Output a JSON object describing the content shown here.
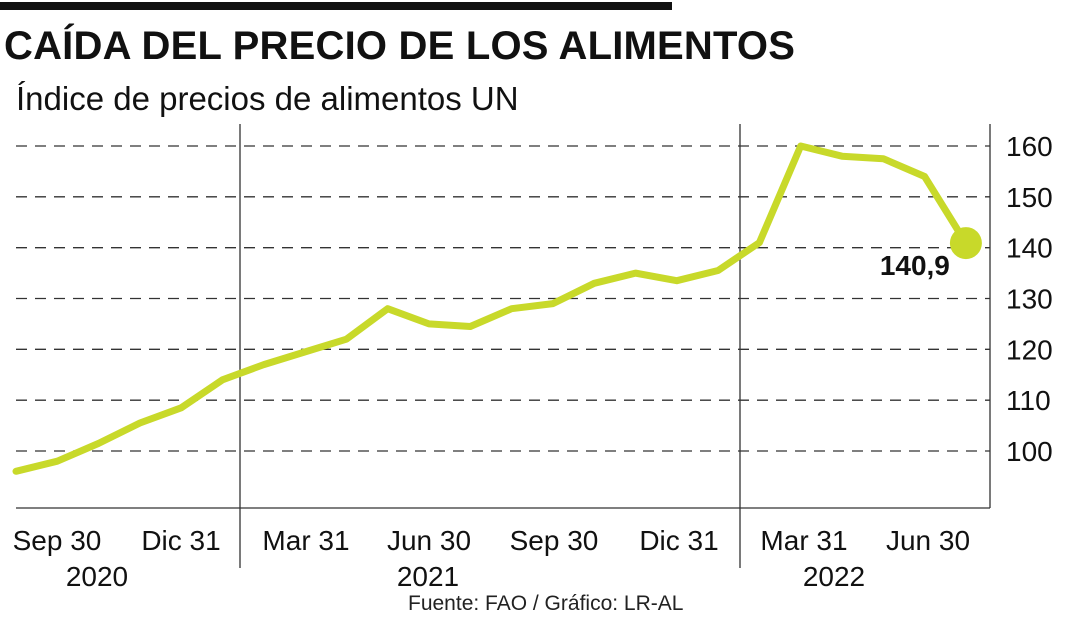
{
  "header": {
    "title": "CAÍDA DEL PRECIO DE LOS ALIMENTOS",
    "subtitle": "Índice de precios de alimentos UN"
  },
  "footer": {
    "source": "Fuente: FAO / Gráfico: LR-AL"
  },
  "colors": {
    "line": "#c8d92a",
    "grid": "#333333",
    "text": "#111111"
  },
  "chart_data": {
    "type": "line",
    "title": "CAÍDA DEL PRECIO DE LOS ALIMENTOS",
    "subtitle": "Índice de precios de alimentos UN",
    "y_axis": {
      "position": "right",
      "ticks": [
        100,
        110,
        120,
        130,
        140,
        150,
        160
      ],
      "ylim": [
        92,
        163
      ]
    },
    "x_tick_labels": [
      "Sep 30",
      "Dic 31",
      "Mar 31",
      "Jun 30",
      "Sep 30",
      "Dic 31",
      "Mar 31",
      "Jun 30"
    ],
    "years": [
      "2020",
      "2021",
      "2022"
    ],
    "grid": "horizontal dashed",
    "series": [
      {
        "values": [
          96,
          98,
          101.5,
          105.5,
          108.5,
          114,
          117,
          119.5,
          122,
          128,
          125,
          124.5,
          128,
          129,
          133,
          135,
          133.5,
          135.5,
          141,
          160,
          158,
          157.5,
          154,
          140.9
        ]
      }
    ],
    "end_point": {
      "value": 140.9,
      "label": "140,9"
    }
  }
}
